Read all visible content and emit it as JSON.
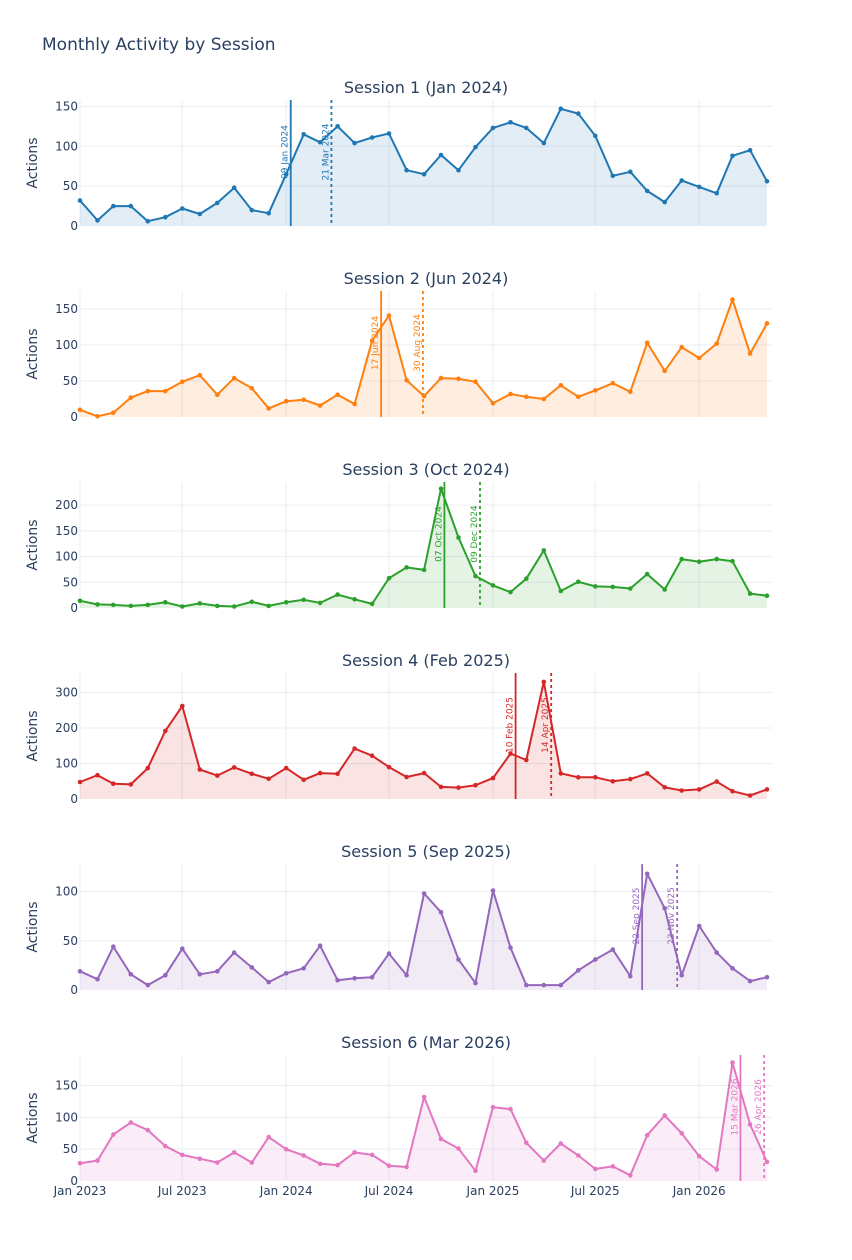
{
  "figure": {
    "title": "Monthly Activity by Session"
  },
  "chart_data": {
    "type": "line",
    "subtype": "multi-panel area line chart with event markers",
    "ylabel": "Actions",
    "x": [
      "2023-01",
      "2023-02",
      "2023-03",
      "2023-04",
      "2023-05",
      "2023-06",
      "2023-07",
      "2023-08",
      "2023-09",
      "2023-10",
      "2023-11",
      "2023-12",
      "2024-01",
      "2024-02",
      "2024-03",
      "2024-04",
      "2024-05",
      "2024-06",
      "2024-07",
      "2024-08",
      "2024-09",
      "2024-10",
      "2024-11",
      "2024-12",
      "2025-01",
      "2025-02",
      "2025-03",
      "2025-04",
      "2025-05",
      "2025-06",
      "2025-07",
      "2025-08",
      "2025-09",
      "2025-10",
      "2025-11",
      "2025-12",
      "2026-01",
      "2026-02",
      "2026-03",
      "2026-04",
      "2026-05"
    ],
    "x_ticks": [
      {
        "date": "2023-01",
        "label": "Jan 2023"
      },
      {
        "date": "2023-07",
        "label": "Jul 2023"
      },
      {
        "date": "2024-01",
        "label": "Jan 2024"
      },
      {
        "date": "2024-07",
        "label": "Jul 2024"
      },
      {
        "date": "2025-01",
        "label": "Jan 2025"
      },
      {
        "date": "2025-07",
        "label": "Jul 2025"
      },
      {
        "date": "2026-01",
        "label": "Jan 2026"
      }
    ],
    "grid": true,
    "panels": [
      {
        "title": "Session 1 (Jan 2024)",
        "color": "#1f77b4",
        "fill": "rgba(31,119,180,0.13)",
        "ylim": [
          0,
          158
        ],
        "yticks": [
          0,
          50,
          100,
          150
        ],
        "values": [
          32,
          7,
          25,
          25,
          6,
          11,
          22,
          15,
          29,
          48,
          20,
          16,
          65,
          115,
          105,
          125,
          104,
          111,
          116,
          70,
          65,
          89,
          70,
          99,
          123,
          130,
          123,
          104,
          147,
          141,
          113,
          63,
          68,
          44,
          30,
          57,
          49,
          41,
          88,
          95,
          56
        ],
        "events": [
          {
            "date": "2024-01-09",
            "label": "09 Jan 2024",
            "style": "solid"
          },
          {
            "date": "2024-03-21",
            "label": "21 Mar 2024",
            "style": "dotted"
          }
        ]
      },
      {
        "title": "Session 2 (Jun 2024)",
        "color": "#ff7f0e",
        "fill": "rgba(255,127,14,0.13)",
        "ylim": [
          0,
          175
        ],
        "yticks": [
          0,
          50,
          100,
          150
        ],
        "values": [
          10,
          1,
          6,
          27,
          36,
          36,
          49,
          58,
          31,
          54,
          40,
          12,
          22,
          24,
          16,
          31,
          18,
          106,
          141,
          51,
          29,
          54,
          53,
          49,
          19,
          32,
          28,
          25,
          44,
          28,
          37,
          47,
          35,
          103,
          64,
          97,
          82,
          102,
          163,
          88,
          130
        ],
        "events": [
          {
            "date": "2024-06-17",
            "label": "17 Jun 2024",
            "style": "solid"
          },
          {
            "date": "2024-08-30",
            "label": "30 Aug 2024",
            "style": "dotted"
          }
        ]
      },
      {
        "title": "Session 3 (Oct 2024)",
        "color": "#2ca02c",
        "fill": "rgba(44,160,44,0.13)",
        "ylim": [
          0,
          245
        ],
        "yticks": [
          0,
          50,
          100,
          150,
          200
        ],
        "values": [
          14,
          7,
          6,
          4,
          6,
          11,
          3,
          9,
          4,
          3,
          12,
          4,
          11,
          16,
          10,
          26,
          17,
          8,
          58,
          79,
          74,
          232,
          137,
          62,
          44,
          31,
          57,
          112,
          33,
          51,
          42,
          41,
          38,
          66,
          36,
          95,
          90,
          95,
          91,
          28,
          24
        ],
        "events": [
          {
            "date": "2024-10-07",
            "label": "07 Oct 2024",
            "style": "solid"
          },
          {
            "date": "2024-12-09",
            "label": "09 Dec 2024",
            "style": "dotted"
          }
        ]
      },
      {
        "title": "Session 4 (Feb 2025)",
        "color": "#d62728",
        "fill": "rgba(214,39,40,0.13)",
        "ylim": [
          0,
          355
        ],
        "yticks": [
          0,
          100,
          200,
          300
        ],
        "values": [
          48,
          67,
          43,
          41,
          87,
          192,
          262,
          83,
          66,
          89,
          71,
          57,
          87,
          54,
          73,
          71,
          142,
          122,
          90,
          62,
          73,
          34,
          32,
          39,
          59,
          128,
          110,
          330,
          72,
          61,
          61,
          50,
          56,
          72,
          33,
          24,
          27,
          49,
          22,
          10,
          27
        ],
        "events": [
          {
            "date": "2025-02-10",
            "label": "10 Feb 2025",
            "style": "solid"
          },
          {
            "date": "2025-04-14",
            "label": "14 Apr 2025",
            "style": "dotted"
          }
        ]
      },
      {
        "title": "Session 5 (Sep 2025)",
        "color": "#9467bd",
        "fill": "rgba(148,103,189,0.13)",
        "ylim": [
          0,
          128
        ],
        "yticks": [
          0,
          50,
          100
        ],
        "values": [
          19,
          11,
          44,
          16,
          5,
          15,
          42,
          16,
          19,
          38,
          23,
          8,
          17,
          22,
          45,
          10,
          12,
          13,
          37,
          15,
          98,
          79,
          31,
          7,
          101,
          43,
          5,
          5,
          5,
          20,
          31,
          41,
          14,
          118,
          83,
          15,
          65,
          38,
          22,
          9,
          13
        ],
        "events": [
          {
            "date": "2025-09-22",
            "label": "22 Sep 2025",
            "style": "solid"
          },
          {
            "date": "2025-11-23",
            "label": "23 Nov 2025",
            "style": "dotted"
          }
        ]
      },
      {
        "title": "Session 6 (Mar 2026)",
        "color": "#e377c2",
        "fill": "rgba(227,119,194,0.13)",
        "ylim": [
          0,
          198
        ],
        "yticks": [
          0,
          50,
          100,
          150
        ],
        "values": [
          28,
          32,
          73,
          92,
          80,
          55,
          41,
          35,
          29,
          45,
          29,
          69,
          50,
          40,
          27,
          25,
          45,
          41,
          24,
          22,
          132,
          66,
          51,
          16,
          116,
          113,
          60,
          32,
          59,
          40,
          19,
          23,
          9,
          72,
          103,
          75,
          39,
          18,
          186,
          89,
          30
        ],
        "events": [
          {
            "date": "2026-03-15",
            "label": "15 Mar 2026",
            "style": "solid"
          },
          {
            "date": "2026-04-26",
            "label": "26 Apr 2026",
            "style": "dotted"
          }
        ]
      }
    ]
  }
}
